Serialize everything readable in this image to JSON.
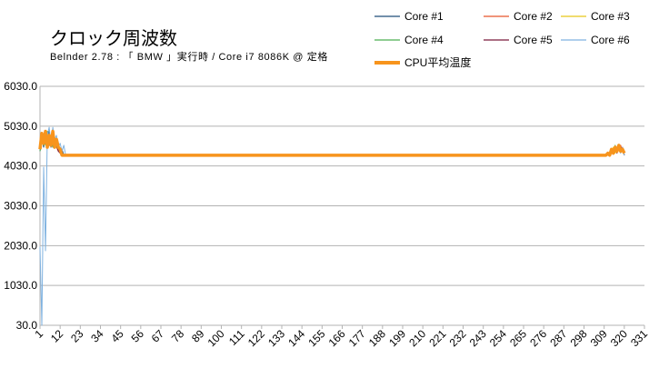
{
  "chart_data": {
    "type": "line",
    "title": "クロック周波数",
    "subtitle": "Belnder 2.78 : 「 BMW 」実行時 / Core i7 8086K @ 定格",
    "xlabel": "",
    "ylabel": "",
    "ylim": [
      30,
      6030
    ],
    "yticks": [
      "30.0",
      "1030.0",
      "2030.0",
      "3030.0",
      "4030.0",
      "5030.0",
      "6030.0"
    ],
    "xlim": [
      1,
      331
    ],
    "xticks": [
      1,
      12,
      23,
      34,
      45,
      56,
      67,
      78,
      89,
      100,
      111,
      122,
      133,
      144,
      155,
      166,
      177,
      188,
      199,
      210,
      221,
      232,
      243,
      254,
      265,
      276,
      287,
      298,
      309,
      320,
      331
    ],
    "grid": "horizontal",
    "legend_position": "top-right",
    "series": [
      {
        "name": "Core #1",
        "color": "#1f4e79",
        "points": [
          [
            1,
            4400
          ],
          [
            2,
            4700
          ],
          [
            3,
            4500
          ],
          [
            4,
            4800
          ],
          [
            5,
            4600
          ],
          [
            6,
            4900
          ],
          [
            7,
            4500
          ],
          [
            8,
            4700
          ],
          [
            9,
            4500
          ],
          [
            10,
            4600
          ],
          [
            11,
            4500
          ],
          [
            12,
            4400
          ],
          [
            13,
            4450
          ],
          [
            14,
            4300
          ],
          [
            15,
            4300
          ],
          [
            312,
            4300
          ],
          [
            313,
            4400
          ],
          [
            314,
            4350
          ],
          [
            315,
            4500
          ],
          [
            316,
            4400
          ],
          [
            317,
            4550
          ],
          [
            318,
            4400
          ],
          [
            319,
            4500
          ],
          [
            320,
            4300
          ]
        ]
      },
      {
        "name": "Core #2",
        "color": "#e8532a",
        "points": [
          [
            1,
            4500
          ],
          [
            2,
            4800
          ],
          [
            3,
            4600
          ],
          [
            4,
            4700
          ],
          [
            5,
            4500
          ],
          [
            6,
            4800
          ],
          [
            7,
            4600
          ],
          [
            8,
            4500
          ],
          [
            9,
            4600
          ],
          [
            10,
            4500
          ],
          [
            11,
            4400
          ],
          [
            12,
            4450
          ],
          [
            13,
            4300
          ],
          [
            14,
            4300
          ],
          [
            15,
            4300
          ],
          [
            312,
            4300
          ],
          [
            313,
            4350
          ],
          [
            314,
            4450
          ],
          [
            315,
            4400
          ],
          [
            316,
            4500
          ],
          [
            317,
            4450
          ],
          [
            318,
            4550
          ],
          [
            319,
            4400
          ],
          [
            320,
            4350
          ]
        ]
      },
      {
        "name": "Core #3",
        "color": "#e6c619",
        "points": [
          [
            1,
            4450
          ],
          [
            2,
            4750
          ],
          [
            3,
            4550
          ],
          [
            4,
            4850
          ],
          [
            5,
            4600
          ],
          [
            6,
            4700
          ],
          [
            7,
            4550
          ],
          [
            8,
            4650
          ],
          [
            9,
            4500
          ],
          [
            10,
            4550
          ],
          [
            11,
            4450
          ],
          [
            12,
            4400
          ],
          [
            13,
            4350
          ],
          [
            14,
            4300
          ],
          [
            15,
            4300
          ],
          [
            312,
            4300
          ],
          [
            313,
            4400
          ],
          [
            314,
            4500
          ],
          [
            315,
            4350
          ],
          [
            316,
            4450
          ],
          [
            317,
            4500
          ],
          [
            318,
            4400
          ],
          [
            319,
            4450
          ],
          [
            320,
            4300
          ]
        ]
      },
      {
        "name": "Core #4",
        "color": "#4caf50",
        "points": [
          [
            1,
            4400
          ],
          [
            2,
            4650
          ],
          [
            3,
            4800
          ],
          [
            4,
            4550
          ],
          [
            5,
            4900
          ],
          [
            6,
            4600
          ],
          [
            7,
            4750
          ],
          [
            8,
            4500
          ],
          [
            9,
            4650
          ],
          [
            10,
            4500
          ],
          [
            11,
            4450
          ],
          [
            12,
            4400
          ],
          [
            13,
            4300
          ],
          [
            14,
            4300
          ],
          [
            15,
            4300
          ],
          [
            312,
            4300
          ],
          [
            313,
            4450
          ],
          [
            314,
            4350
          ],
          [
            315,
            4550
          ],
          [
            316,
            4400
          ],
          [
            317,
            4500
          ],
          [
            318,
            4450
          ],
          [
            319,
            4400
          ],
          [
            320,
            4350
          ]
        ]
      },
      {
        "name": "Core #5",
        "color": "#7b1a3c",
        "points": [
          [
            1,
            4500
          ],
          [
            2,
            4600
          ],
          [
            3,
            4750
          ],
          [
            4,
            4600
          ],
          [
            5,
            4800
          ],
          [
            6,
            4550
          ],
          [
            7,
            4700
          ],
          [
            8,
            4600
          ],
          [
            9,
            4500
          ],
          [
            10,
            4550
          ],
          [
            11,
            4400
          ],
          [
            12,
            4350
          ],
          [
            13,
            4300
          ],
          [
            14,
            4300
          ],
          [
            15,
            4300
          ],
          [
            312,
            4300
          ],
          [
            313,
            4350
          ],
          [
            314,
            4400
          ],
          [
            315,
            4500
          ],
          [
            316,
            4350
          ],
          [
            317,
            4550
          ],
          [
            318,
            4400
          ],
          [
            319,
            4500
          ],
          [
            320,
            4300
          ]
        ]
      },
      {
        "name": "Core #6",
        "color": "#7fb2e0",
        "points": [
          [
            1,
            2000
          ],
          [
            2,
            30
          ],
          [
            3,
            4000
          ],
          [
            4,
            1900
          ],
          [
            5,
            4800
          ],
          [
            6,
            5000
          ],
          [
            7,
            4600
          ],
          [
            8,
            5000
          ],
          [
            9,
            4700
          ],
          [
            10,
            4800
          ],
          [
            11,
            4500
          ],
          [
            12,
            4600
          ],
          [
            13,
            4400
          ],
          [
            14,
            4550
          ],
          [
            15,
            4300
          ],
          [
            16,
            4300
          ],
          [
            312,
            4300
          ],
          [
            313,
            4400
          ],
          [
            314,
            4350
          ],
          [
            315,
            4500
          ],
          [
            316,
            4400
          ],
          [
            317,
            4450
          ],
          [
            318,
            4350
          ],
          [
            319,
            4500
          ],
          [
            320,
            4300
          ]
        ]
      },
      {
        "name": "CPU平均温度",
        "color": "#f7941d",
        "points": [
          [
            1,
            4450
          ],
          [
            2,
            4850
          ],
          [
            3,
            4600
          ],
          [
            4,
            4900
          ],
          [
            5,
            4500
          ],
          [
            6,
            4800
          ],
          [
            7,
            4550
          ],
          [
            8,
            4900
          ],
          [
            9,
            4500
          ],
          [
            10,
            4700
          ],
          [
            11,
            4500
          ],
          [
            12,
            4450
          ],
          [
            13,
            4300
          ],
          [
            14,
            4300
          ],
          [
            15,
            4300
          ],
          [
            310,
            4300
          ],
          [
            311,
            4350
          ],
          [
            312,
            4300
          ],
          [
            313,
            4450
          ],
          [
            314,
            4350
          ],
          [
            315,
            4500
          ],
          [
            316,
            4400
          ],
          [
            317,
            4550
          ],
          [
            318,
            4400
          ],
          [
            319,
            4450
          ],
          [
            320,
            4350
          ]
        ]
      }
    ]
  }
}
